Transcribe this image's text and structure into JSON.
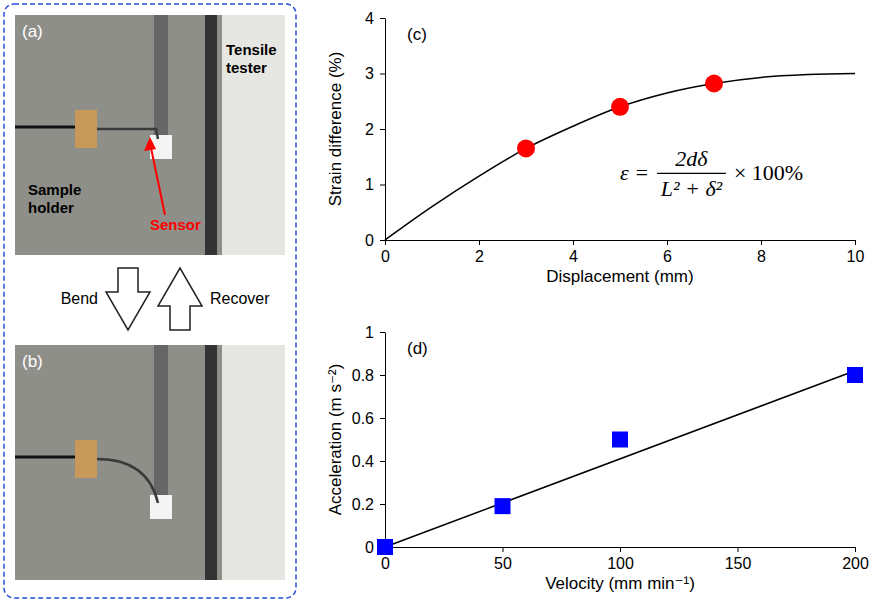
{
  "chart_data": [
    {
      "type": "line",
      "panel_label": "(c)",
      "x_label": "Displacement (mm)",
      "y_label": "Strain difference (%)",
      "xlim": [
        0,
        10
      ],
      "xticks": [
        0,
        2,
        4,
        6,
        8,
        10
      ],
      "ylim": [
        0,
        4
      ],
      "yticks": [
        0,
        1,
        2,
        3,
        4
      ],
      "grid": false,
      "annotation": {
        "lhs": "ε =",
        "numerator": "2dδ",
        "denominator": "L² + δ²",
        "rhs": "× 100%"
      },
      "series": [
        {
          "type": "line",
          "color": "#000000",
          "line_style": "solid",
          "x": [
            0,
            1,
            2,
            3,
            4,
            5,
            6,
            7,
            8,
            9,
            10
          ],
          "values": [
            0,
            0.6,
            1.15,
            1.65,
            2.05,
            2.4,
            2.65,
            2.82,
            2.93,
            2.98,
            3.0
          ]
        },
        {
          "type": "scatter",
          "color": "#ff0000",
          "marker": "circle",
          "x": [
            3,
            5,
            7
          ],
          "values": [
            1.65,
            2.4,
            2.82
          ]
        }
      ]
    },
    {
      "type": "scatter",
      "panel_label": "(d)",
      "x_label": "Velocity (mm min⁻¹)",
      "y_label": "Acceleration (m s⁻²)",
      "xlim": [
        0,
        200
      ],
      "xticks": [
        0,
        50,
        100,
        150,
        200
      ],
      "ylim": [
        0,
        1
      ],
      "yticks": [
        0,
        0.2,
        0.4,
        0.6,
        0.8,
        1
      ],
      "grid": false,
      "series": [
        {
          "type": "line",
          "color": "#000000",
          "line_style": "solid",
          "x": [
            0,
            200
          ],
          "values": [
            0,
            0.82
          ]
        },
        {
          "type": "scatter",
          "color": "#0000ff",
          "marker": "square",
          "x": [
            0,
            50,
            100,
            200
          ],
          "values": [
            0,
            0.19,
            0.5,
            0.8
          ]
        }
      ]
    }
  ],
  "photos": {
    "panels": [
      {
        "label": "(a)",
        "tester": "Tensile tester",
        "holder": "Sample holder",
        "sensor": "Sensor"
      },
      {
        "label": "(b)"
      }
    ],
    "bend": "Bend",
    "recover": "Recover"
  }
}
